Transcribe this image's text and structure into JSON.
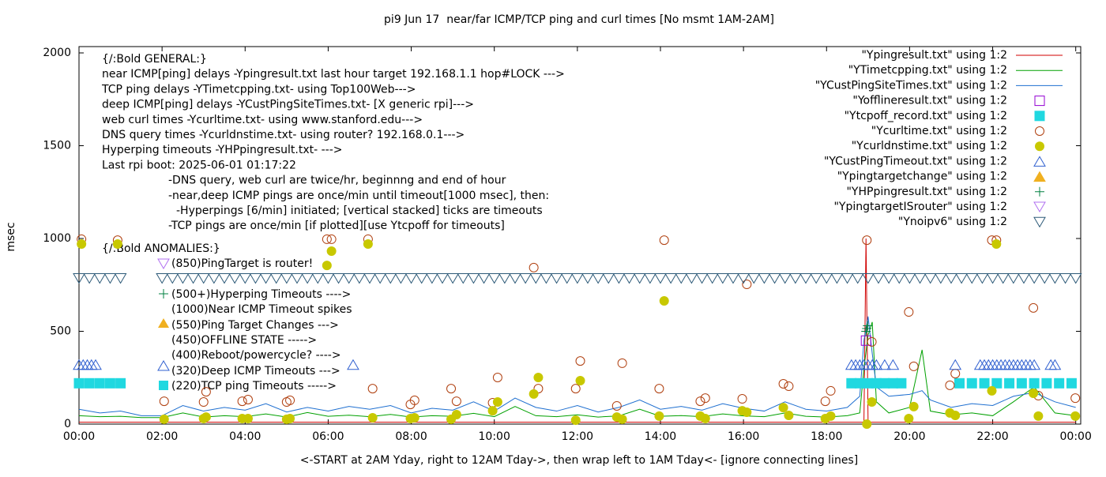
{
  "chart_data": {
    "type": "line",
    "title": "pi9 Jun 17  near/far ICMP/TCP ping and curl times [No msmt 1AM-2AM]",
    "xlabel": "<-START at 2AM Yday, right to 12AM Tday->, then wrap left to 1AM Tday<- [ignore connecting lines]",
    "ylabel": "msec",
    "xlim": [
      0,
      24.12
    ],
    "ylim": [
      0,
      2034
    ],
    "xticks": [
      {
        "value": 0,
        "label": "00:00"
      },
      {
        "value": 2,
        "label": "02:00"
      },
      {
        "value": 4,
        "label": "04:00"
      },
      {
        "value": 6,
        "label": "06:00"
      },
      {
        "value": 8,
        "label": "08:00"
      },
      {
        "value": 10,
        "label": "10:00"
      },
      {
        "value": 12,
        "label": "12:00"
      },
      {
        "value": 14,
        "label": "14:00"
      },
      {
        "value": 16,
        "label": "16:00"
      },
      {
        "value": 18,
        "label": "18:00"
      },
      {
        "value": 20,
        "label": "20:00"
      },
      {
        "value": 22,
        "label": "22:00"
      },
      {
        "value": 24,
        "label": "00:00"
      }
    ],
    "yticks": [
      0,
      500,
      1000,
      1500,
      2000
    ],
    "legend": "top-right",
    "general_notes": [
      "{/:Bold GENERAL:}",
      "near ICMP[ping] delays -Ypingresult.txt last hour target 192.168.1.1 hop#LOCK --->",
      "TCP ping delays -YTimetcpping.txt- using Top100Web--->",
      "deep ICMP[ping] delays -YCustPingSiteTimes.txt- [X generic rpi]--->",
      "web curl times -Ycurltime.txt- using www.stanford.edu--->",
      "DNS query times -Ycurldnstime.txt- using router? 192.168.0.1--->",
      "Hyperping timeouts -YHPpingresult.txt- --->",
      "Last rpi boot: 2025-06-01 01:17:22",
      "-DNS query, web curl are twice/hr, beginnng and end of hour",
      "-near,deep ICMP pings are once/min until timeout[1000 msec], then:",
      "-Hyperpings [6/min] initiated; [vertical stacked] ticks are timeouts",
      "-TCP pings are once/min [if plotted][use Ytcpoff for timeouts]"
    ],
    "anomaly_title": "{/:Bold ANOMALIES:}",
    "anomaly_notes": [
      "(850)PingTarget is router!",
      "(500+)Hyperping Timeouts ---->",
      "(1000)Near ICMP Timeout spikes",
      "(550)Ping Target Changes --->",
      "(450)OFFLINE STATE ----->",
      "(400)Reboot/powercycle? ---->",
      "(320)Deep ICMP Timeouts --->",
      "(220)TCP ping Timeouts ----->"
    ],
    "series": [
      {
        "name": "\"Ypingresult.txt\" using 1:2",
        "color": "#d00000",
        "marker": "line",
        "x": [
          0,
          18.9,
          18.95,
          19.0,
          24
        ],
        "values": [
          10,
          10,
          1000,
          10,
          10
        ]
      },
      {
        "name": "\"YTimetcpping.txt\" using 1:2",
        "color": "#00a000",
        "marker": "line",
        "x": [
          0,
          0.5,
          1,
          1.5,
          2,
          2.5,
          3,
          3.5,
          4,
          4.5,
          5,
          5.5,
          6,
          6.5,
          7,
          7.5,
          8,
          8.5,
          9,
          9.5,
          10,
          10.5,
          11,
          11.5,
          12,
          12.5,
          13,
          13.5,
          14,
          14.5,
          15,
          15.5,
          16,
          16.5,
          17,
          17.5,
          18,
          18.5,
          18.8,
          18.9,
          19,
          19.1,
          19.2,
          19.5,
          20,
          20.3,
          20.5,
          21,
          21.5,
          22,
          22.5,
          23,
          23.5,
          24
        ],
        "values": [
          45,
          40,
          42,
          35,
          35,
          60,
          38,
          45,
          40,
          55,
          38,
          62,
          42,
          48,
          40,
          52,
          38,
          45,
          42,
          58,
          40,
          95,
          45,
          40,
          50,
          38,
          44,
          80,
          42,
          46,
          40,
          55,
          44,
          40,
          60,
          42,
          38,
          45,
          60,
          300,
          480,
          550,
          120,
          60,
          90,
          400,
          70,
          50,
          60,
          45,
          120,
          200,
          60,
          45
        ]
      },
      {
        "name": "\"YCustPingSiteTimes.txt\" using 1:2",
        "color": "#1e6fd0",
        "marker": "line",
        "x": [
          0,
          0.5,
          1,
          1.5,
          2,
          2.5,
          3,
          3.5,
          4,
          4.5,
          5,
          5.5,
          6,
          6.5,
          7,
          7.5,
          8,
          8.5,
          9,
          9.5,
          10,
          10.5,
          11,
          11.5,
          12,
          12.5,
          13,
          13.5,
          14,
          14.5,
          15,
          15.5,
          16,
          16.5,
          17,
          17.5,
          18,
          18.5,
          18.8,
          18.9,
          19,
          19.1,
          19.2,
          19.5,
          20,
          20.3,
          20.5,
          21,
          21.5,
          22,
          22.5,
          23,
          23.5,
          24
        ],
        "values": [
          80,
          60,
          70,
          45,
          45,
          100,
          70,
          90,
          75,
          110,
          65,
          90,
          70,
          95,
          80,
          100,
          60,
          85,
          75,
          120,
          70,
          140,
          90,
          70,
          100,
          65,
          90,
          130,
          80,
          95,
          75,
          110,
          85,
          70,
          120,
          80,
          70,
          90,
          150,
          450,
          580,
          380,
          200,
          150,
          160,
          180,
          130,
          90,
          110,
          100,
          150,
          170,
          120,
          90
        ]
      },
      {
        "name": "\"Yofflineresult.txt\" using 1:2",
        "color": "#9400d3",
        "marker": "square-open",
        "x": [
          18.95
        ],
        "values": [
          450
        ]
      },
      {
        "name": "\"Ytcpoff_record.txt\" using 1:2",
        "color": "#20d8e0",
        "marker": "square",
        "x": [
          0,
          0.25,
          0.5,
          0.75,
          1.0,
          18.6,
          18.8,
          19.0,
          19.2,
          19.4,
          19.6,
          19.8,
          21.2,
          21.5,
          21.8,
          22.1,
          22.4,
          22.7,
          23.0,
          23.3,
          23.6,
          23.9
        ],
        "values": [
          220,
          220,
          220,
          220,
          220,
          220,
          220,
          220,
          220,
          220,
          220,
          220,
          220,
          220,
          220,
          220,
          220,
          220,
          220,
          220,
          220,
          220
        ]
      },
      {
        "name": "\"Ycurltime.txt\" using 1:2",
        "color": "#b04010",
        "marker": "circle-open",
        "x": [
          0.06,
          0.93,
          2.05,
          3.0,
          3.06,
          3.93,
          4.07,
          5.0,
          5.08,
          5.97,
          6.08,
          6.96,
          7.07,
          7.98,
          8.08,
          8.96,
          9.09,
          9.96,
          10.08,
          10.95,
          11.06,
          11.96,
          12.07,
          12.95,
          13.08,
          13.97,
          14.09,
          14.96,
          15.08,
          15.97,
          16.08,
          16.96,
          17.09,
          17.97,
          18.1,
          18.97,
          19.09,
          19.98,
          20.1,
          20.97,
          21.1,
          21.98,
          22.09,
          22.98,
          23.1,
          23.99
        ],
        "values": [
          996,
          991,
          123,
          119,
          174,
          123,
          132,
          119,
          128,
          996,
          996,
          996,
          191,
          106,
          128,
          191,
          123,
          115,
          251,
          843,
          191,
          191,
          340,
          98,
          328,
          191,
          991,
          123,
          140,
          136,
          753,
          217,
          204,
          123,
          179,
          991,
          443,
          604,
          311,
          209,
          272,
          991,
          991,
          626,
          153,
          140
        ]
      },
      {
        "name": "\"Ycurldnstime.txt\" using 1:2",
        "color": "#c8c800",
        "marker": "circle",
        "x": [
          0.06,
          0.93,
          2.05,
          3.0,
          3.06,
          3.93,
          4.07,
          5.0,
          5.08,
          5.97,
          6.08,
          6.96,
          7.07,
          7.98,
          8.08,
          8.96,
          9.09,
          9.96,
          10.08,
          10.95,
          11.06,
          11.96,
          12.07,
          12.95,
          13.08,
          13.97,
          14.09,
          14.96,
          15.08,
          15.97,
          16.08,
          16.96,
          17.09,
          17.97,
          18.1,
          18.97,
          19.09,
          19.98,
          20.1,
          20.97,
          21.1,
          21.98,
          22.09,
          22.98,
          23.1,
          23.99
        ],
        "values": [
          970,
          970,
          26,
          30,
          38,
          30,
          30,
          26,
          30,
          855,
          932,
          970,
          34,
          30,
          34,
          26,
          51,
          72,
          119,
          162,
          251,
          21,
          234,
          38,
          26,
          43,
          664,
          43,
          30,
          72,
          64,
          89,
          47,
          30,
          43,
          0,
          119,
          30,
          94,
          60,
          47,
          179,
          970,
          166,
          43,
          43
        ]
      },
      {
        "name": "\"YCustPingTimeout.txt\" using 1:2",
        "color": "#3060d0",
        "marker": "triangle-up-open",
        "x": [
          0,
          0.1,
          0.2,
          0.3,
          0.4,
          6.6,
          18.6,
          18.7,
          18.8,
          18.9,
          19.0,
          19.1,
          19.2,
          19.4,
          19.6,
          21.1,
          21.7,
          21.8,
          21.9,
          22.0,
          22.1,
          22.2,
          22.3,
          22.4,
          22.5,
          22.6,
          22.7,
          22.8,
          22.9,
          23.0,
          23.4,
          23.5
        ],
        "values": [
          320,
          320,
          320,
          320,
          320,
          320,
          320,
          320,
          320,
          320,
          320,
          320,
          320,
          320,
          320,
          320,
          320,
          320,
          320,
          320,
          320,
          320,
          320,
          320,
          320,
          320,
          320,
          320,
          320,
          320,
          320,
          320
        ]
      },
      {
        "name": "\"Ypingtargetchange\" using 1:2",
        "color": "#f0b020",
        "marker": "triangle-up",
        "x": [],
        "values": []
      },
      {
        "name": "\"YHPpingresult.txt\" using 1:2",
        "color": "#008040",
        "marker": "plus",
        "x": [
          18.95,
          18.97,
          18.99
        ],
        "values": [
          500,
          515,
          530
        ]
      },
      {
        "name": "\"YpingtargetISrouter\" using 1:2",
        "color": "#b070f0",
        "marker": "triangle-down-open",
        "x": [],
        "values": []
      },
      {
        "name": "\"Ynoipv6\" using 1:2",
        "color": "#2d5a78",
        "marker": "triangle-down-open",
        "x": [
          0,
          0.25,
          0.5,
          0.75,
          1.0,
          2,
          2.25,
          2.5,
          2.75,
          3,
          3.25,
          3.5,
          3.75,
          4,
          4.25,
          4.5,
          4.75,
          5,
          5.25,
          5.5,
          5.75,
          6,
          6.25,
          6.5,
          6.75,
          7,
          7.25,
          7.5,
          7.75,
          8,
          8.25,
          8.5,
          8.75,
          9,
          9.25,
          9.5,
          9.75,
          10,
          10.25,
          10.5,
          10.75,
          11,
          11.25,
          11.5,
          11.75,
          12,
          12.25,
          12.5,
          12.75,
          13,
          13.25,
          13.5,
          13.75,
          14,
          14.25,
          14.5,
          14.75,
          15,
          15.25,
          15.5,
          15.75,
          16,
          16.25,
          16.5,
          16.75,
          17,
          17.25,
          17.5,
          17.75,
          18,
          18.25,
          18.5,
          18.75,
          19,
          19.25,
          19.5,
          19.75,
          20,
          20.25,
          20.5,
          20.75,
          21,
          21.25,
          21.5,
          21.75,
          22,
          22.25,
          22.5,
          22.75,
          23,
          23.25,
          23.5,
          23.75,
          24
        ],
        "values": [
          785,
          785,
          785,
          785,
          785,
          785,
          785,
          785,
          785,
          785,
          785,
          785,
          785,
          785,
          785,
          785,
          785,
          785,
          785,
          785,
          785,
          785,
          785,
          785,
          785,
          785,
          785,
          785,
          785,
          785,
          785,
          785,
          785,
          785,
          785,
          785,
          785,
          785,
          785,
          785,
          785,
          785,
          785,
          785,
          785,
          785,
          785,
          785,
          785,
          785,
          785,
          785,
          785,
          785,
          785,
          785,
          785,
          785,
          785,
          785,
          785,
          785,
          785,
          785,
          785,
          785,
          785,
          785,
          785,
          785,
          785,
          785,
          785,
          785,
          785,
          785,
          785,
          785,
          785,
          785,
          785,
          785,
          785,
          785,
          785,
          785,
          785,
          785,
          785,
          785,
          785,
          785,
          785,
          785
        ]
      }
    ]
  }
}
